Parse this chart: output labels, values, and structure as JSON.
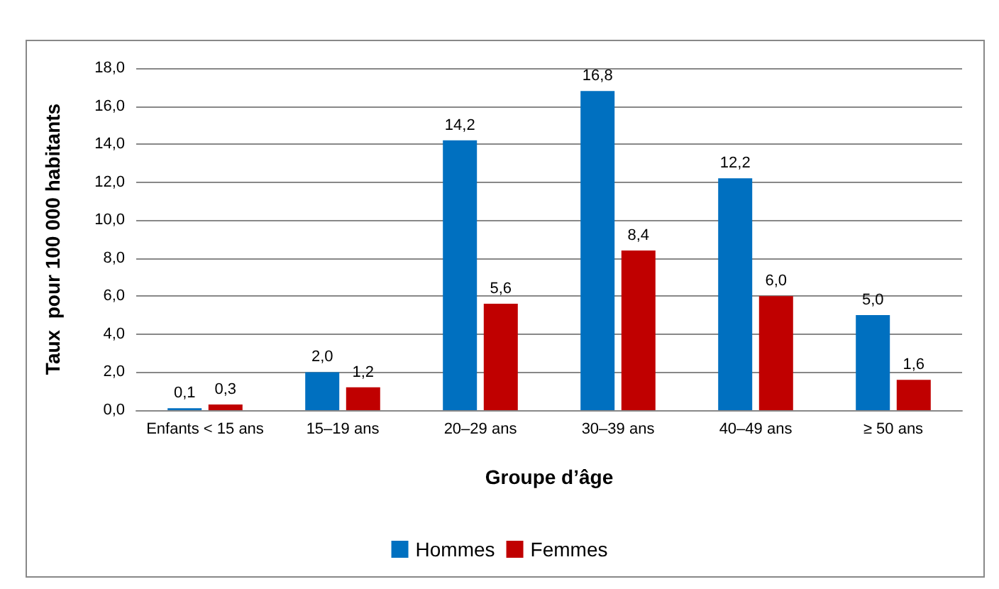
{
  "chart_data": {
    "type": "bar",
    "xlabel": "Groupe d’âge",
    "ylabel": "Taux  pour 100 000 habitants",
    "categories": [
      "Enfants < 15 ans",
      "15–19 ans",
      "20–29 ans",
      "30–39 ans",
      "40–49 ans",
      "≥ 50 ans"
    ],
    "series": [
      {
        "name": "Hommes",
        "color": "#0070c0",
        "values": [
          0.1,
          2.0,
          14.2,
          16.8,
          12.2,
          5.0
        ],
        "value_labels": [
          "0,1",
          "2,0",
          "14,2",
          "16,8",
          "12,2",
          "5,0"
        ]
      },
      {
        "name": "Femmes",
        "color": "#c00000",
        "values": [
          0.3,
          1.2,
          5.6,
          8.4,
          6.0,
          1.6
        ],
        "value_labels": [
          "0,3",
          "1,2",
          "5,6",
          "8,4",
          "6,0",
          "1,6"
        ]
      }
    ],
    "ylim": [
      0,
      18
    ],
    "yticks": [
      {
        "value": 0,
        "label": "0,0"
      },
      {
        "value": 2,
        "label": "2,0"
      },
      {
        "value": 4,
        "label": "4,0"
      },
      {
        "value": 6,
        "label": "6,0"
      },
      {
        "value": 8,
        "label": "8,0"
      },
      {
        "value": 10,
        "label": "10,0"
      },
      {
        "value": 12,
        "label": "12,0"
      },
      {
        "value": 14,
        "label": "14,0"
      },
      {
        "value": 16,
        "label": "16,0"
      },
      {
        "value": 18,
        "label": "18,0"
      }
    ],
    "grid": "y",
    "legend": "bottom"
  }
}
